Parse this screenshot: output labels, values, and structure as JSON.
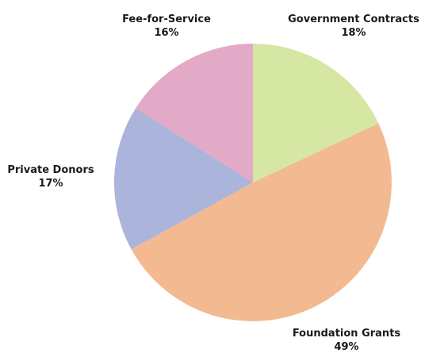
{
  "chart_data": {
    "type": "pie",
    "start_angle_deg": 0,
    "direction": "clockwise",
    "slices": [
      {
        "label": "Government Contracts",
        "value": 18,
        "value_label": "18%",
        "color": "#d6e6a3"
      },
      {
        "label": "Foundation Grants",
        "value": 49,
        "value_label": "49%",
        "color": "#f3b990"
      },
      {
        "label": "Private Donors",
        "value": 17,
        "value_label": "17%",
        "color": "#abb4da"
      },
      {
        "label": "Fee-for-Service",
        "value": 16,
        "value_label": "16%",
        "color": "#e2aac6"
      }
    ],
    "legend": "none"
  }
}
